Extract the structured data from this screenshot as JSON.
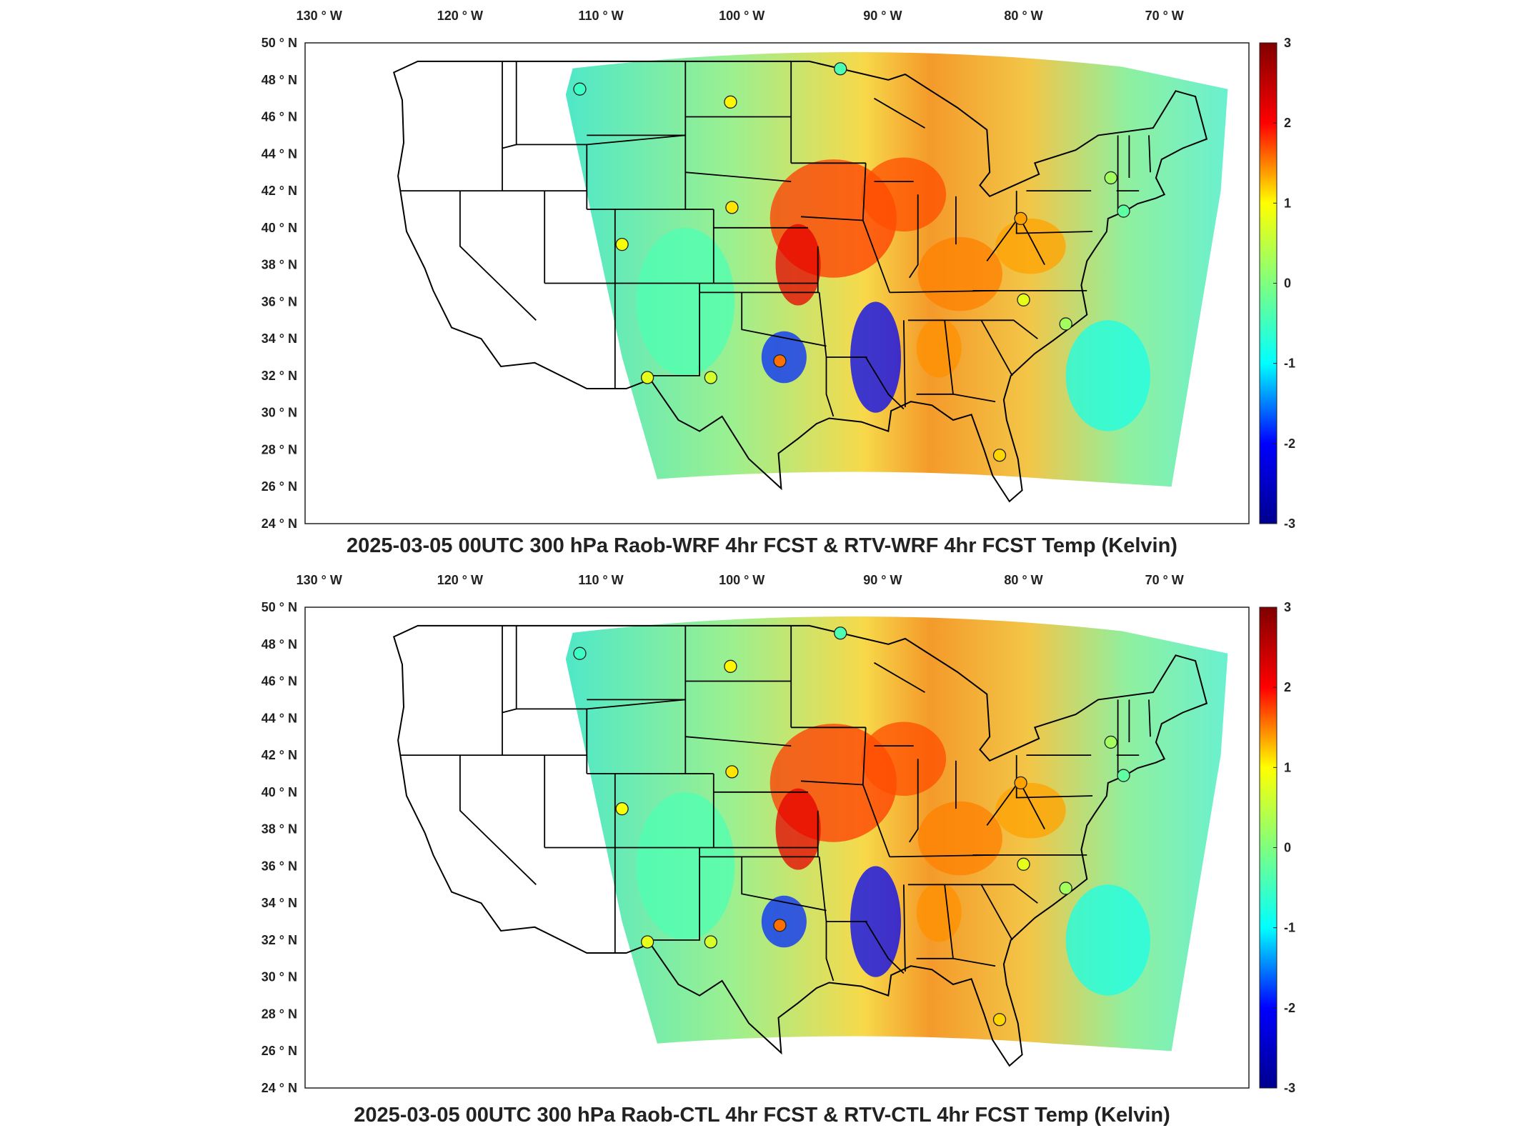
{
  "panels": [
    {
      "title": "2025-03-05 00UTC 300 hPa Raob-WRF 4hr FCST & RTV-WRF 4hr FCST Temp (Kelvin)"
    },
    {
      "title": "2025-03-05 00UTC 300 hPa Raob-CTL 4hr FCST & RTV-CTL 4hr FCST Temp (Kelvin)"
    }
  ],
  "lon_ticks": [
    "130 ° W",
    "120 ° W",
    "110 ° W",
    "100 ° W",
    "90 ° W",
    "80 ° W",
    "70 ° W"
  ],
  "lat_ticks": [
    "50 ° N",
    "48 ° N",
    "46 ° N",
    "44 ° N",
    "42 ° N",
    "40 ° N",
    "38 ° N",
    "36 ° N",
    "34 ° N",
    "32 ° N",
    "30 ° N",
    "28 ° N",
    "26 ° N",
    "24 ° N"
  ],
  "colorbar": {
    "min": -3,
    "max": 3,
    "ticks": [
      "3",
      "2",
      "1",
      "0",
      "-1",
      "-2",
      "-3"
    ],
    "colormap": "jet",
    "colors": [
      "#00008f",
      "#0000ff",
      "#00ffff",
      "#7fff7f",
      "#ffff00",
      "#ff0000",
      "#800000"
    ]
  },
  "map": {
    "lon_range": [
      -131,
      -64
    ],
    "lat_range": [
      24,
      50
    ],
    "projection": "curved domain (Lambert-like)",
    "coast_color": "#000000"
  },
  "stations": [
    {
      "lon": -111.5,
      "lat": 47.5,
      "value": -0.4
    },
    {
      "lon": -93.0,
      "lat": 48.6,
      "value": -0.3
    },
    {
      "lon": -100.8,
      "lat": 46.8,
      "value": 0.8
    },
    {
      "lon": -73.8,
      "lat": 42.7,
      "value": 0.2
    },
    {
      "lon": -72.9,
      "lat": 40.9,
      "value": -0.2
    },
    {
      "lon": -80.2,
      "lat": 40.5,
      "value": 1.3
    },
    {
      "lon": -100.7,
      "lat": 41.1,
      "value": 0.9
    },
    {
      "lon": -108.5,
      "lat": 39.1,
      "value": 0.7
    },
    {
      "lon": -80.0,
      "lat": 36.1,
      "value": 0.6
    },
    {
      "lon": -77.0,
      "lat": 34.8,
      "value": 0.2
    },
    {
      "lon": -97.3,
      "lat": 32.8,
      "value": 1.6
    },
    {
      "lon": -102.2,
      "lat": 31.9,
      "value": 0.5
    },
    {
      "lon": -106.7,
      "lat": 31.9,
      "value": 0.6
    },
    {
      "lon": -81.7,
      "lat": 27.7,
      "value": 1.0
    }
  ]
}
